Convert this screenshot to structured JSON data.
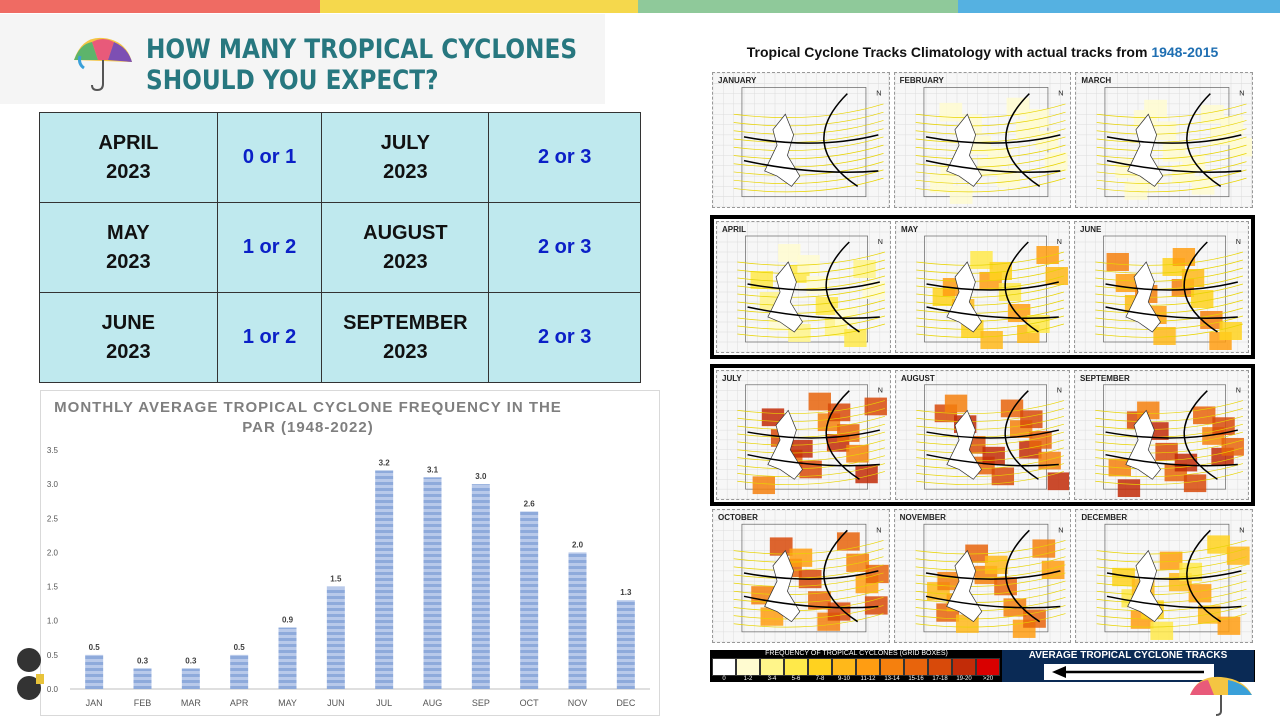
{
  "header": {
    "title_line1": "HOW MANY TROPICAL CYCLONES",
    "title_line2": "SHOULD YOU EXPECT?"
  },
  "forecast_table": [
    [
      {
        "month": "APRIL",
        "year": "2023",
        "value": "0 or 1"
      },
      {
        "month": "JULY",
        "year": "2023",
        "value": "2 or 3"
      }
    ],
    [
      {
        "month": "MAY",
        "year": "2023",
        "value": "1 or 2"
      },
      {
        "month": "AUGUST",
        "year": "2023",
        "value": "2 or 3"
      }
    ],
    [
      {
        "month": "JUNE",
        "year": "2023",
        "value": "1 or 2"
      },
      {
        "month": "SEPTEMBER",
        "year": "2023",
        "value": "2 or 3"
      }
    ]
  ],
  "chart_data": {
    "type": "bar",
    "title": "MONTHLY AVERAGE TROPICAL CYCLONE FREQUENCY IN THE PAR (1948-2022)",
    "categories": [
      "JAN",
      "FEB",
      "MAR",
      "APR",
      "MAY",
      "JUN",
      "JUL",
      "AUG",
      "SEP",
      "OCT",
      "NOV",
      "DEC"
    ],
    "values": [
      0.5,
      0.3,
      0.3,
      0.5,
      0.9,
      1.5,
      3.2,
      3.1,
      3.0,
      2.6,
      2.0,
      1.3
    ],
    "ylim": [
      0,
      3.5
    ],
    "yticks": [
      "0.0",
      "0.5",
      "1.0",
      "1.5",
      "2.0",
      "2.5",
      "3.0",
      "3.5"
    ],
    "color": "#8eaadb",
    "xlabel": "",
    "ylabel": ""
  },
  "climatology": {
    "title_prefix": "Tropical Cyclone Tracks Climatology with actual tracks from ",
    "title_years": "1948-2015",
    "panels": [
      "JANUARY",
      "FEBRUARY",
      "MARCH",
      "APRIL",
      "MAY",
      "JUNE",
      "JULY",
      "AUGUST",
      "SEPTEMBER",
      "OCTOBER",
      "NOVEMBER",
      "DECEMBER"
    ],
    "legend_title": "FREQUENCY OF TROPICAL CYCLONES (GRID BOXES)",
    "legend_bins": [
      "0",
      "1-2",
      "3-4",
      "5-6",
      "7-8",
      "9-10",
      "11-12",
      "13-14",
      "15-16",
      "17-18",
      "19-20",
      ">20"
    ],
    "legend_colors": [
      "#ffffff",
      "#fffbd0",
      "#fff58a",
      "#ffe94a",
      "#ffd21f",
      "#ffb81a",
      "#ff9d12",
      "#f5800e",
      "#e8640c",
      "#d84a0a",
      "#c22c08",
      "#d90000"
    ],
    "avg_tracks_label": "AVERAGE TROPICAL CYCLONE TRACKS"
  },
  "colors": {
    "title_teal": "#27777f",
    "table_bg": "#bfe9ee",
    "value_blue": "#0b20c7"
  }
}
